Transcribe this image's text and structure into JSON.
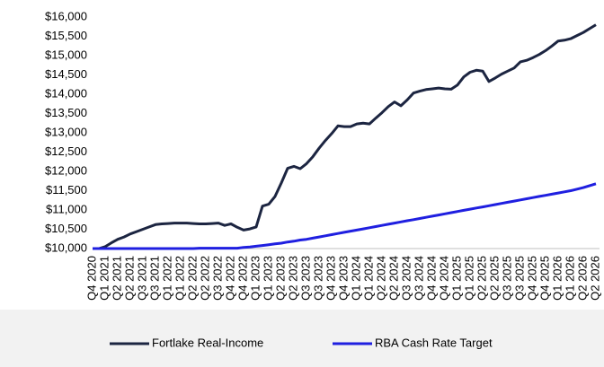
{
  "chart_data": {
    "type": "line",
    "categories": [
      "Q4 2020",
      null,
      "Q1 2021",
      null,
      "Q2 2021",
      null,
      "Q2 2021",
      null,
      "Q3 2021",
      null,
      "Q3 2021",
      null,
      "Q1 2022",
      null,
      "Q1 2022",
      null,
      "Q2 2022",
      null,
      "Q2 2022",
      null,
      "Q3 2022",
      null,
      "Q4 2022",
      null,
      "Q4 2022",
      null,
      "Q1 2023",
      null,
      "Q1 2023",
      null,
      "Q2 2023",
      null,
      "Q2 2023",
      null,
      "Q3 2023",
      null,
      "Q3 2023",
      null,
      "Q4 2023",
      null,
      "Q4 2023",
      null,
      "Q1 2024",
      null,
      "Q1 2024",
      null,
      "Q2 2024",
      null,
      "Q2 2024",
      null,
      "Q3 2024",
      null,
      "Q3 2024",
      null,
      "Q4 2024",
      null,
      "Q4 2024",
      null,
      "Q1 2025",
      null,
      "Q1 2025",
      null,
      "Q2 2025",
      null,
      "Q2 2025",
      null,
      "Q3 2025",
      null,
      "Q3 2025",
      null,
      "Q4 2025",
      null,
      "Q4 2025",
      null,
      "Q1 2026",
      null,
      "Q1 2026",
      null,
      "Q2 2026",
      null,
      "Q2 2026"
    ],
    "series": [
      {
        "name": "Fortlake Real-Income",
        "color": "#1c2541",
        "values": [
          10000,
          10000,
          10050,
          10150,
          10240,
          10300,
          10380,
          10440,
          10500,
          10560,
          10620,
          10640,
          10650,
          10660,
          10660,
          10660,
          10650,
          10640,
          10640,
          10650,
          10660,
          10600,
          10640,
          10550,
          10480,
          10510,
          10560,
          11100,
          11150,
          11350,
          11700,
          12080,
          12130,
          12070,
          12200,
          12380,
          12600,
          12800,
          12980,
          13180,
          13160,
          13160,
          13230,
          13250,
          13230,
          13380,
          13520,
          13680,
          13800,
          13700,
          13850,
          14030,
          14080,
          14120,
          14140,
          14160,
          14140,
          14130,
          14240,
          14450,
          14570,
          14620,
          14600,
          14330,
          14420,
          14520,
          14600,
          14680,
          14840,
          14880,
          14950,
          15030,
          15130,
          15250,
          15380,
          15400,
          15440,
          15520,
          15600,
          15700,
          15800
        ]
      },
      {
        "name": "RBA Cash Rate Target",
        "color": "#1f1fe0",
        "values": [
          10000,
          10000,
          10000,
          10000,
          10000,
          10000,
          10000,
          10000,
          10000,
          10000,
          10000,
          10000,
          10000,
          10000,
          10000,
          10000,
          10000,
          10010,
          10010,
          10010,
          10010,
          10010,
          10010,
          10010,
          10030,
          10040,
          10060,
          10080,
          10100,
          10120,
          10140,
          10170,
          10190,
          10220,
          10240,
          10270,
          10300,
          10330,
          10360,
          10390,
          10420,
          10450,
          10480,
          10510,
          10540,
          10570,
          10600,
          10630,
          10660,
          10690,
          10720,
          10750,
          10780,
          10810,
          10840,
          10870,
          10900,
          10930,
          10960,
          10990,
          11020,
          11050,
          11080,
          11110,
          11140,
          11170,
          11200,
          11230,
          11260,
          11290,
          11320,
          11350,
          11380,
          11410,
          11440,
          11470,
          11500,
          11540,
          11580,
          11630,
          11680
        ]
      }
    ],
    "ylim": [
      10000,
      16000
    ],
    "yticks": [
      {
        "value": 10000,
        "label": "$10,000"
      },
      {
        "value": 10500,
        "label": "$10,500"
      },
      {
        "value": 11000,
        "label": "$11,000"
      },
      {
        "value": 11500,
        "label": "$11,500"
      },
      {
        "value": 12000,
        "label": "$12,000"
      },
      {
        "value": 12500,
        "label": "$12,500"
      },
      {
        "value": 13000,
        "label": "$13,000"
      },
      {
        "value": 13500,
        "label": "$13,500"
      },
      {
        "value": 14000,
        "label": "$14,000"
      },
      {
        "value": 14500,
        "label": "$14,500"
      },
      {
        "value": 15000,
        "label": "$15,000"
      },
      {
        "value": 15500,
        "label": "$15,500"
      },
      {
        "value": 16000,
        "label": "$16,000"
      }
    ],
    "grid": false,
    "legend": "bottom"
  }
}
